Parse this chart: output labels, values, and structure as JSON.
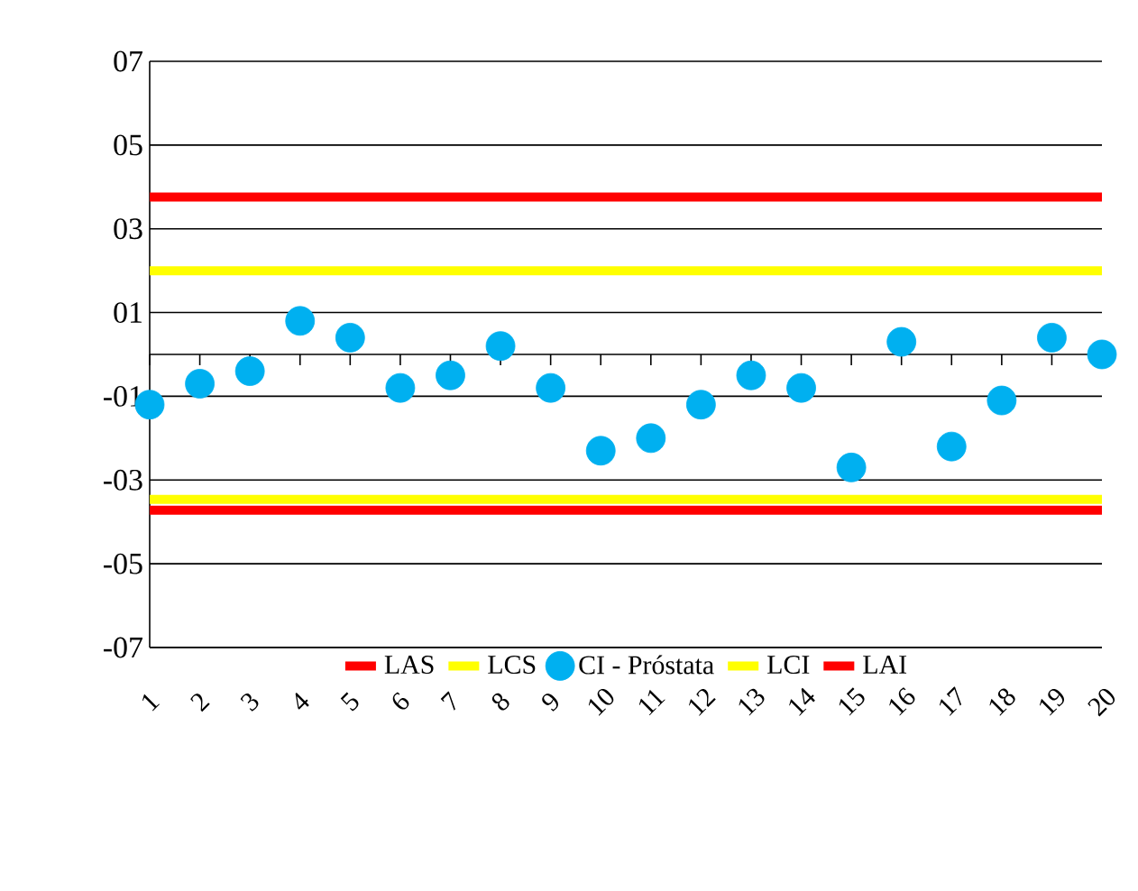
{
  "chart_data": {
    "type": "scatter",
    "categories": [
      "1",
      "2",
      "3",
      "4",
      "5",
      "6",
      "7",
      "8",
      "9",
      "10",
      "11",
      "12",
      "13",
      "14",
      "15",
      "16",
      "17",
      "18",
      "19",
      "20"
    ],
    "series": [
      {
        "name": "LAS",
        "type": "line",
        "color": "#ff0000",
        "values": [
          3.76,
          3.76,
          3.76,
          3.76,
          3.76,
          3.76,
          3.76,
          3.76,
          3.76,
          3.76,
          3.76,
          3.76,
          3.76,
          3.76,
          3.76,
          3.76,
          3.76,
          3.76,
          3.76,
          3.76
        ]
      },
      {
        "name": "LCS",
        "type": "line",
        "color": "#ffff00",
        "values": [
          2.0,
          2.0,
          2.0,
          2.0,
          2.0,
          2.0,
          2.0,
          2.0,
          2.0,
          2.0,
          2.0,
          2.0,
          2.0,
          2.0,
          2.0,
          2.0,
          2.0,
          2.0,
          2.0,
          2.0
        ]
      },
      {
        "name": "CI - Próstata",
        "marker": "circle",
        "color": "#00b0f0",
        "values": [
          -1.2,
          -0.7,
          -0.4,
          0.8,
          0.4,
          -0.8,
          -0.5,
          0.2,
          -0.8,
          -2.3,
          -2.0,
          -1.2,
          -0.5,
          -0.8,
          -2.7,
          0.3,
          -2.2,
          -1.1,
          0.4,
          0.0
        ]
      },
      {
        "name": "LCI",
        "type": "line",
        "color": "#ffff00",
        "values": [
          -3.46,
          -3.46,
          -3.46,
          -3.46,
          -3.46,
          -3.46,
          -3.46,
          -3.46,
          -3.46,
          -3.46,
          -3.46,
          -3.46,
          -3.46,
          -3.46,
          -3.46,
          -3.46,
          -3.46,
          -3.46,
          -3.46,
          -3.46
        ]
      },
      {
        "name": "LAI",
        "type": "line",
        "color": "#ff0000",
        "values": [
          -3.72,
          -3.72,
          -3.72,
          -3.72,
          -3.72,
          -3.72,
          -3.72,
          -3.72,
          -3.72,
          -3.72,
          -3.72,
          -3.72,
          -3.72,
          -3.72,
          -3.72,
          -3.72,
          -3.72,
          -3.72,
          -3.72,
          -3.72
        ]
      }
    ],
    "ylim": [
      -7,
      7
    ],
    "yticks": [
      {
        "value": 7,
        "label": "07"
      },
      {
        "value": 5,
        "label": "05"
      },
      {
        "value": 3,
        "label": "03"
      },
      {
        "value": 1,
        "label": "01"
      },
      {
        "value": -1,
        "label": "-01"
      },
      {
        "value": -3,
        "label": "-03"
      },
      {
        "value": -5,
        "label": "-05"
      },
      {
        "value": -7,
        "label": "-07"
      }
    ],
    "grid": "y",
    "legend": "bottom"
  }
}
